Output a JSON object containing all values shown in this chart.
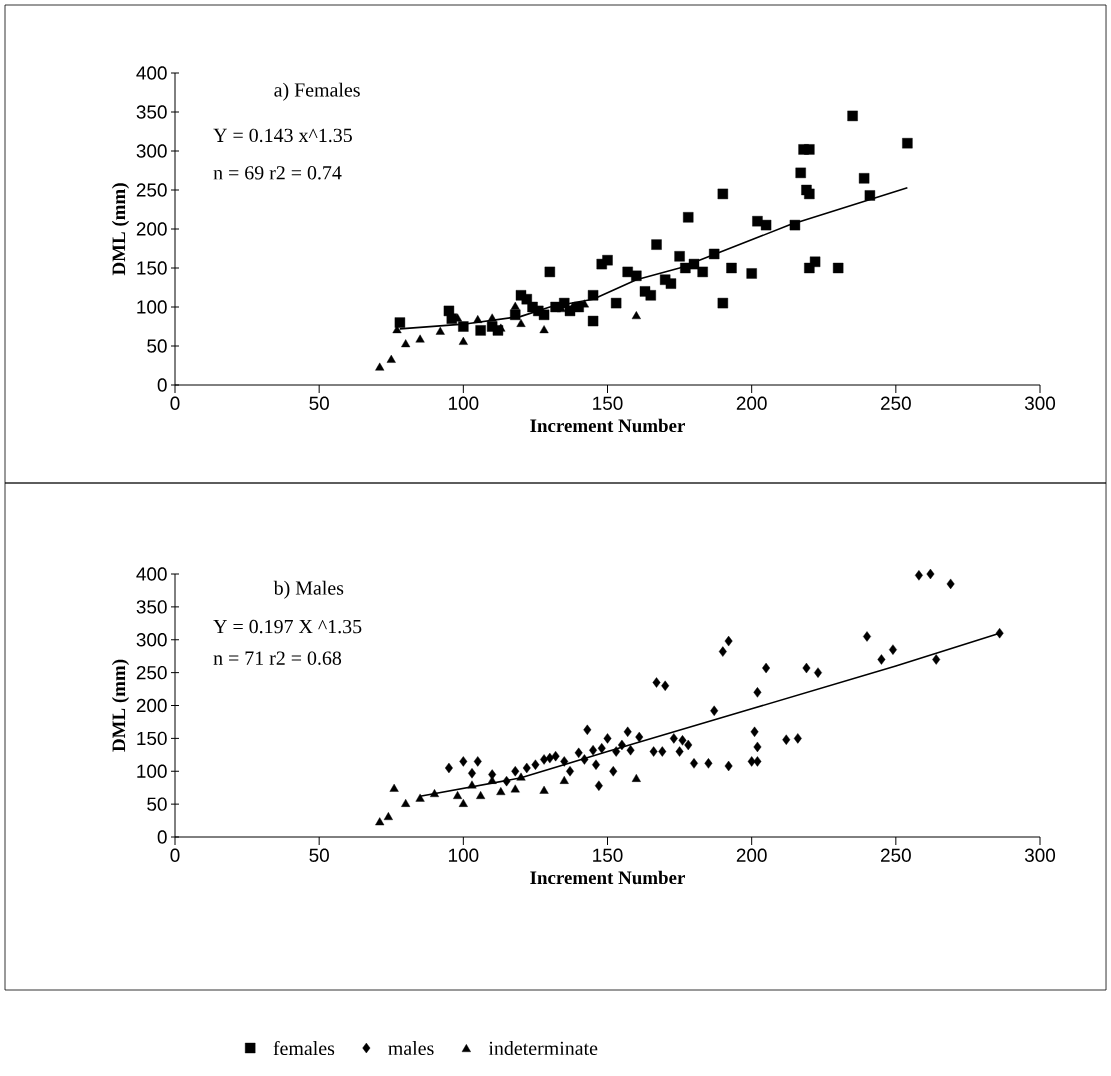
{
  "chart_data": [
    {
      "type": "scatter",
      "xlabel": "Increment Number",
      "ylabel": "DML (mm)",
      "xlim": [
        0,
        300
      ],
      "ylim": [
        0,
        400
      ],
      "xticks": [
        0,
        50,
        100,
        150,
        200,
        250,
        300
      ],
      "yticks": [
        0,
        50,
        100,
        150,
        200,
        250,
        300,
        350,
        400
      ],
      "grid": false,
      "legend": "bottom",
      "annotations": [
        "a) Females",
        "Y = 0.143 x^1.35",
        "n = 69     r2 = 0.74"
      ],
      "series": [
        {
          "name": "females",
          "color": "#000000",
          "marker": "square",
          "x": [
            78,
            95,
            96,
            100,
            106,
            110,
            112,
            118,
            120,
            122,
            124,
            126,
            128,
            130,
            132,
            135,
            137,
            140,
            145,
            145,
            148,
            150,
            153,
            157,
            160,
            163,
            165,
            167,
            170,
            172,
            175,
            177,
            178,
            180,
            183,
            187,
            190,
            190,
            193,
            200,
            202,
            205,
            215,
            217,
            218,
            219,
            220,
            220,
            220,
            222,
            230,
            235,
            239,
            241,
            254
          ],
          "values": [
            80,
            95,
            85,
            75,
            70,
            75,
            70,
            90,
            115,
            110,
            100,
            95,
            90,
            145,
            100,
            105,
            95,
            100,
            115,
            82,
            155,
            160,
            105,
            145,
            140,
            120,
            115,
            180,
            135,
            130,
            165,
            150,
            215,
            155,
            145,
            168,
            245,
            105,
            150,
            143,
            210,
            205,
            205,
            272,
            302,
            250,
            302,
            245,
            150,
            158,
            150,
            345,
            265,
            243,
            310
          ]
        },
        {
          "color": "#000000",
          "marker": "triangle",
          "x": [
            71,
            75,
            77,
            80,
            85,
            92,
            98,
            100,
            105,
            110,
            113,
            118,
            120,
            128,
            134,
            138,
            142,
            160
          ],
          "values": [
            22,
            32,
            70,
            52,
            58,
            68,
            85,
            55,
            83,
            85,
            72,
            100,
            78,
            70,
            97,
            100,
            103,
            88
          ]
        },
        {
          "type": "line",
          "color": "#000000",
          "marker": "none",
          "x": [
            78,
            100,
            120,
            130,
            145,
            160,
            175,
            213,
            254
          ],
          "values": [
            72,
            78,
            88,
            100,
            110,
            135,
            150,
            205,
            253
          ]
        }
      ]
    },
    {
      "type": "scatter",
      "xlabel": "Increment Number",
      "ylabel": "DML (mm)",
      "xlim": [
        0,
        300
      ],
      "ylim": [
        0,
        400
      ],
      "xticks": [
        0,
        50,
        100,
        150,
        200,
        250,
        300
      ],
      "yticks": [
        0,
        50,
        100,
        150,
        200,
        250,
        300,
        350,
        400
      ],
      "grid": false,
      "legend": "bottom",
      "annotations": [
        "b) Males",
        "Y = 0.197 X ^1.35",
        "n = 71     r2 = 0.68"
      ],
      "series": [
        {
          "name": "males",
          "color": "#000000",
          "marker": "diamond",
          "x": [
            95,
            100,
            105,
            103,
            110,
            115,
            118,
            122,
            125,
            128,
            130,
            132,
            135,
            137,
            140,
            142,
            143,
            145,
            146,
            147,
            148,
            150,
            152,
            153,
            155,
            157,
            158,
            161,
            166,
            167,
            169,
            170,
            173,
            175,
            176,
            178,
            180,
            185,
            187,
            190,
            192,
            192,
            200,
            201,
            202,
            202,
            202,
            205,
            212,
            216,
            219,
            223,
            240,
            245,
            249,
            258,
            262,
            264,
            269,
            286
          ],
          "values": [
            105,
            115,
            115,
            97,
            95,
            85,
            100,
            105,
            110,
            118,
            120,
            123,
            115,
            100,
            128,
            118,
            163,
            132,
            110,
            78,
            135,
            150,
            100,
            130,
            140,
            160,
            132,
            152,
            130,
            235,
            130,
            230,
            150,
            130,
            147,
            140,
            112,
            112,
            192,
            282,
            298,
            108,
            115,
            160,
            115,
            220,
            137,
            257,
            148,
            150,
            257,
            250,
            305,
            270,
            285,
            398,
            400,
            270,
            385,
            310
          ]
        },
        {
          "name": "indeterminate",
          "color": "#000000",
          "marker": "triangle",
          "x": [
            71,
            74,
            76,
            80,
            85,
            90,
            98,
            100,
            103,
            106,
            110,
            113,
            118,
            120,
            128,
            135,
            160
          ],
          "values": [
            22,
            30,
            73,
            50,
            58,
            65,
            62,
            50,
            78,
            62,
            85,
            68,
            72,
            90,
            70,
            85,
            88
          ]
        },
        {
          "type": "line",
          "color": "#000000",
          "marker": "none",
          "x": [
            85,
            120,
            150,
            200,
            250,
            286
          ],
          "values": [
            62,
            90,
            130,
            195,
            260,
            310
          ]
        }
      ]
    }
  ]
}
